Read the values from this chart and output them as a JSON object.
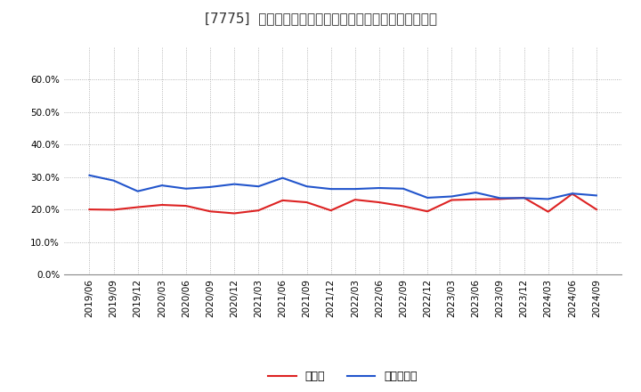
{
  "title": "[7775]  現預金、有利子負債の総資産に対する比率の推移",
  "x_labels": [
    "2019/06",
    "2019/09",
    "2019/12",
    "2020/03",
    "2020/06",
    "2020/09",
    "2020/12",
    "2021/03",
    "2021/06",
    "2021/09",
    "2021/12",
    "2022/03",
    "2022/06",
    "2022/09",
    "2022/12",
    "2023/03",
    "2023/06",
    "2023/09",
    "2023/12",
    "2024/03",
    "2024/06",
    "2024/09"
  ],
  "cash": [
    0.2,
    0.199,
    0.207,
    0.214,
    0.211,
    0.194,
    0.188,
    0.197,
    0.228,
    0.222,
    0.197,
    0.23,
    0.222,
    0.21,
    0.194,
    0.229,
    0.231,
    0.232,
    0.236,
    0.193,
    0.248,
    0.2
  ],
  "debt": [
    0.305,
    0.289,
    0.256,
    0.274,
    0.264,
    0.269,
    0.278,
    0.271,
    0.297,
    0.271,
    0.263,
    0.263,
    0.266,
    0.264,
    0.236,
    0.24,
    0.252,
    0.235,
    0.235,
    0.232,
    0.249,
    0.243
  ],
  "cash_color": "#dd2222",
  "debt_color": "#2255cc",
  "background_color": "#ffffff",
  "plot_bg_color": "#ffffff",
  "grid_color": "#999999",
  "legend_cash": "現預金",
  "legend_debt": "有利子負債",
  "ylim": [
    0.0,
    0.7
  ],
  "yticks": [
    0.0,
    0.1,
    0.2,
    0.3,
    0.4,
    0.5,
    0.6
  ],
  "title_fontsize": 11,
  "tick_fontsize": 7.5,
  "legend_fontsize": 9,
  "linewidth": 1.5
}
